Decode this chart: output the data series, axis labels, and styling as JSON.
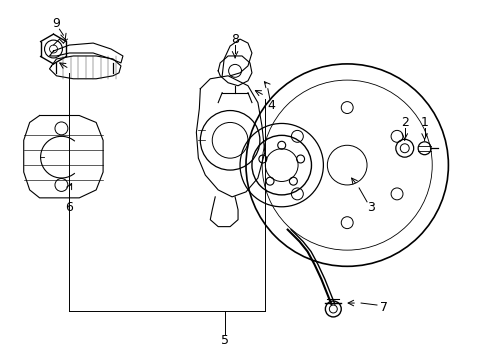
{
  "background_color": "#ffffff",
  "line_color": "#000000",
  "figsize": [
    4.89,
    3.6
  ],
  "dpi": 100,
  "label_fontsize": 9
}
